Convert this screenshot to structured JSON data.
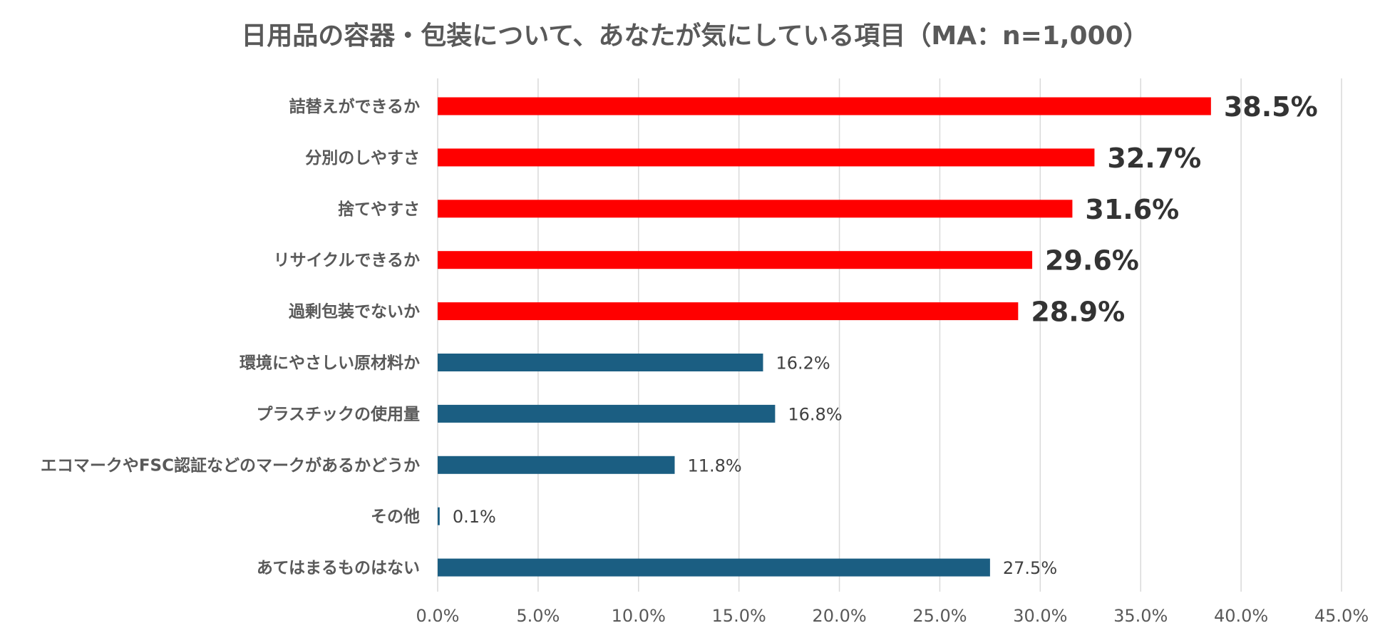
{
  "chart_data": {
    "type": "bar",
    "orientation": "horizontal",
    "title": "日用品の容器・包装について、あなたが気にしている項目（MA：n=1,000）",
    "xlabel": "",
    "ylabel": "",
    "xlim": [
      0,
      45
    ],
    "x_ticks": [
      "0.0%",
      "5.0%",
      "10.0%",
      "15.0%",
      "20.0%",
      "25.0%",
      "30.0%",
      "35.0%",
      "40.0%",
      "45.0%"
    ],
    "grid": true,
    "legend": "none",
    "categories": [
      "詰替えができるか",
      "分別のしやすさ",
      "捨てやすさ",
      "リサイクルできるか",
      "過剰包装でないか",
      "環境にやさしい原材料か",
      "プラスチックの使用量",
      "エコマークやFSC認証などのマークがあるかどうか",
      "その他",
      "あてはまるものはない"
    ],
    "values": [
      38.5,
      32.7,
      31.6,
      29.6,
      28.9,
      16.2,
      16.8,
      11.8,
      0.1,
      27.5
    ],
    "value_labels": [
      "38.5%",
      "32.7%",
      "31.6%",
      "29.6%",
      "28.9%",
      "16.2%",
      "16.8%",
      "11.8%",
      "0.1%",
      "27.5%"
    ],
    "highlighted": [
      true,
      true,
      true,
      true,
      true,
      false,
      false,
      false,
      false,
      false
    ],
    "colors": {
      "highlight": "#ff0000",
      "normal": "#1b5e82",
      "grid": "#d9d9d9",
      "text": "#595959"
    }
  }
}
